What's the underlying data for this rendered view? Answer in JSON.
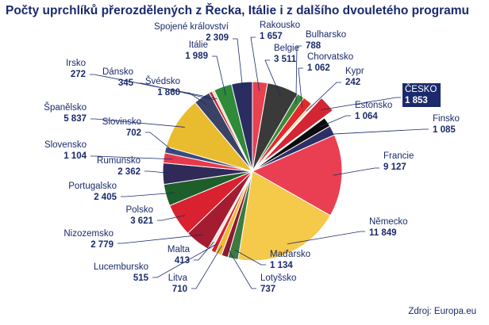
{
  "chart_data": {
    "type": "pie",
    "title": "Počty uprchlíků přerozdělených z Řecka, Itálie i z dalšího dvouletého programu",
    "source": "Zdroj: Europa.eu",
    "highlight": "ČESKO",
    "slices": [
      {
        "name": "Rakousko",
        "value_label": "1 657",
        "value": 1657,
        "color": "#e8414f"
      },
      {
        "name": "Belgie",
        "value_label": "3 511",
        "value": 3511,
        "color": "#3a3a3a"
      },
      {
        "name": "Bulharsko",
        "value_label": "788",
        "value": 788,
        "color": "#3b8a3a"
      },
      {
        "name": "Chorvatsko",
        "value_label": "1 062",
        "value": 1062,
        "color": "#e32a2a"
      },
      {
        "name": "Kypr",
        "value_label": "242",
        "value": 242,
        "color": "#f6d27a"
      },
      {
        "name": "ČESKO",
        "value_label": "1 853",
        "value": 1853,
        "color": "#d42533"
      },
      {
        "name": "Estonsko",
        "value_label": "1 064",
        "value": 1064,
        "color": "#0c0c0c"
      },
      {
        "name": "Finsko",
        "value_label": "1 085",
        "value": 1085,
        "color": "#2e2f66"
      },
      {
        "name": "Francie",
        "value_label": "9 127",
        "value": 9127,
        "color": "#ea3f52"
      },
      {
        "name": "Německo",
        "value_label": "11 849",
        "value": 11849,
        "color": "#f5c94a"
      },
      {
        "name": "Maďarsko",
        "value_label": "1 134",
        "value": 1134,
        "color": "#3d7a40"
      },
      {
        "name": "Lotyšsko",
        "value_label": "737",
        "value": 737,
        "color": "#8f1a2e"
      },
      {
        "name": "Litva",
        "value_label": "710",
        "value": 710,
        "color": "#f0b93a"
      },
      {
        "name": "Lucembursko",
        "value_label": "515",
        "value": 515,
        "color": "#d2202a"
      },
      {
        "name": "Malta",
        "value_label": "413",
        "value": 413,
        "color": "#f3e0e0"
      },
      {
        "name": "Nizozemsko",
        "value_label": "2 779",
        "value": 2779,
        "color": "#a31c30"
      },
      {
        "name": "Polsko",
        "value_label": "3 621",
        "value": 3621,
        "color": "#d92130"
      },
      {
        "name": "Portugalsko",
        "value_label": "2 405",
        "value": 2405,
        "color": "#1e5e2a"
      },
      {
        "name": "Rumunsko",
        "value_label": "2 362",
        "value": 2362,
        "color": "#302a58"
      },
      {
        "name": "Slovensko",
        "value_label": "1 104",
        "value": 1104,
        "color": "#e53a4c"
      },
      {
        "name": "Slovinsko",
        "value_label": "702",
        "value": 702,
        "color": "#3b4a80"
      },
      {
        "name": "Španělsko",
        "value_label": "5 837",
        "value": 5837,
        "color": "#e9bb2e"
      },
      {
        "name": "Švédsko",
        "value_label": "1 860",
        "value": 1860,
        "color": "#3a4366"
      },
      {
        "name": "Dánsko",
        "value_label": "345",
        "value": 345,
        "color": "#c0282e"
      },
      {
        "name": "Irsko",
        "value_label": "272",
        "value": 272,
        "color": "#f4d2b0"
      },
      {
        "name": "Itálie",
        "value_label": "1 989",
        "value": 1989,
        "color": "#2f8a3a"
      },
      {
        "name": "Spojené království",
        "value_label": "2 309",
        "value": 2309,
        "color": "#2a2d60"
      }
    ]
  }
}
